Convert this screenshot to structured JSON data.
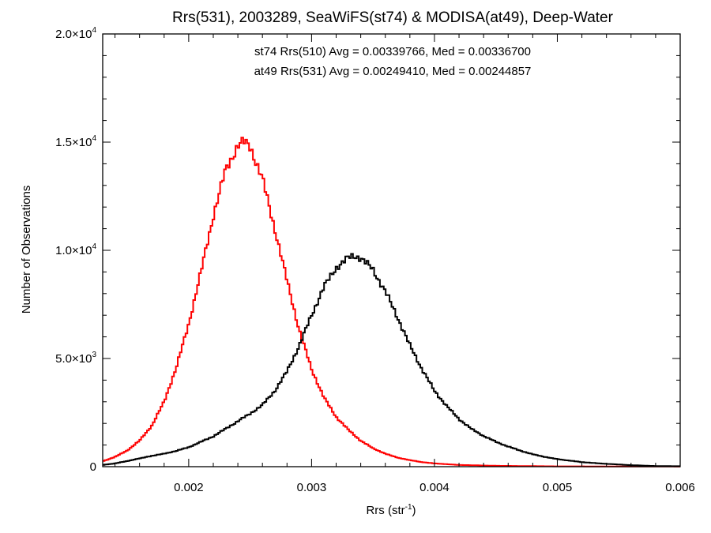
{
  "chart_data": {
    "type": "histogram-step",
    "title": "Rrs(531), 2003289, SeaWiFS(st74) & MODISA(at49), Deep-Water",
    "xlabel": {
      "base": "Rrs (str",
      "sup": "-1",
      "tail": ")"
    },
    "ylabel": "Number of Observations",
    "xlim": [
      0.0013,
      0.006
    ],
    "ylim": [
      0,
      20000
    ],
    "grid": false,
    "xticks": [
      {
        "value": 0.002,
        "label": "0.002"
      },
      {
        "value": 0.003,
        "label": "0.003"
      },
      {
        "value": 0.004,
        "label": "0.004"
      },
      {
        "value": 0.005,
        "label": "0.005"
      },
      {
        "value": 0.006,
        "label": "0.006"
      }
    ],
    "yticks": [
      {
        "value": 0,
        "mant": "0",
        "exp": ""
      },
      {
        "value": 5000,
        "mant": "5.0×10",
        "exp": "3"
      },
      {
        "value": 10000,
        "mant": "1.0×10",
        "exp": "4"
      },
      {
        "value": 15000,
        "mant": "1.5×10",
        "exp": "4"
      },
      {
        "value": 20000,
        "mant": "2.0×10",
        "exp": "4"
      }
    ],
    "colors": {
      "st74": "#000000",
      "at49": "#ff0000"
    },
    "series": [
      {
        "key": "st74",
        "annotation": "st74 Rrs(510) Avg = 0.00339766, Med = 0.00336700",
        "mean": 0.00339766,
        "median": 0.003367,
        "control_points": [
          [
            0.0013,
            80
          ],
          [
            0.0014,
            150
          ],
          [
            0.0015,
            260
          ],
          [
            0.0016,
            380
          ],
          [
            0.0017,
            500
          ],
          [
            0.0018,
            600
          ],
          [
            0.0019,
            730
          ],
          [
            0.002,
            900
          ],
          [
            0.0021,
            1150
          ],
          [
            0.0022,
            1400
          ],
          [
            0.0023,
            1750
          ],
          [
            0.0024,
            2100
          ],
          [
            0.0025,
            2450
          ],
          [
            0.0026,
            2850
          ],
          [
            0.0027,
            3500
          ],
          [
            0.0028,
            4400
          ],
          [
            0.0029,
            5600
          ],
          [
            0.003,
            7000
          ],
          [
            0.0031,
            8300
          ],
          [
            0.0032,
            9200
          ],
          [
            0.0033,
            9650
          ],
          [
            0.00335,
            9750
          ],
          [
            0.0034,
            9650
          ],
          [
            0.0035,
            9100
          ],
          [
            0.0036,
            8100
          ],
          [
            0.0037,
            6900
          ],
          [
            0.0038,
            5600
          ],
          [
            0.0039,
            4500
          ],
          [
            0.004,
            3500
          ],
          [
            0.0041,
            2800
          ],
          [
            0.0042,
            2200
          ],
          [
            0.0043,
            1750
          ],
          [
            0.0044,
            1420
          ],
          [
            0.0045,
            1150
          ],
          [
            0.0046,
            930
          ],
          [
            0.0047,
            740
          ],
          [
            0.0048,
            570
          ],
          [
            0.0049,
            450
          ],
          [
            0.005,
            350
          ],
          [
            0.0052,
            210
          ],
          [
            0.0054,
            130
          ],
          [
            0.0056,
            70
          ],
          [
            0.0058,
            30
          ],
          [
            0.006,
            20
          ]
        ]
      },
      {
        "key": "at49",
        "annotation": "at49 Rrs(531) Avg = 0.00249410, Med = 0.00244857",
        "mean": 0.0024941,
        "median": 0.00244857,
        "control_points": [
          [
            0.0013,
            250
          ],
          [
            0.0014,
            450
          ],
          [
            0.0015,
            750
          ],
          [
            0.0016,
            1200
          ],
          [
            0.0017,
            1900
          ],
          [
            0.0018,
            3000
          ],
          [
            0.0019,
            4600
          ],
          [
            0.002,
            6600
          ],
          [
            0.0021,
            9000
          ],
          [
            0.0022,
            11600
          ],
          [
            0.0023,
            13700
          ],
          [
            0.0024,
            14850
          ],
          [
            0.00245,
            15000
          ],
          [
            0.0025,
            14800
          ],
          [
            0.0026,
            13300
          ],
          [
            0.0027,
            11000
          ],
          [
            0.0028,
            8600
          ],
          [
            0.0029,
            6300
          ],
          [
            0.003,
            4500
          ],
          [
            0.0031,
            3200
          ],
          [
            0.0032,
            2300
          ],
          [
            0.0033,
            1700
          ],
          [
            0.0034,
            1200
          ],
          [
            0.0035,
            850
          ],
          [
            0.0036,
            600
          ],
          [
            0.0037,
            420
          ],
          [
            0.0038,
            300
          ],
          [
            0.0039,
            210
          ],
          [
            0.004,
            150
          ],
          [
            0.0042,
            80
          ],
          [
            0.0045,
            40
          ],
          [
            0.005,
            15
          ],
          [
            0.006,
            5
          ]
        ]
      }
    ]
  }
}
